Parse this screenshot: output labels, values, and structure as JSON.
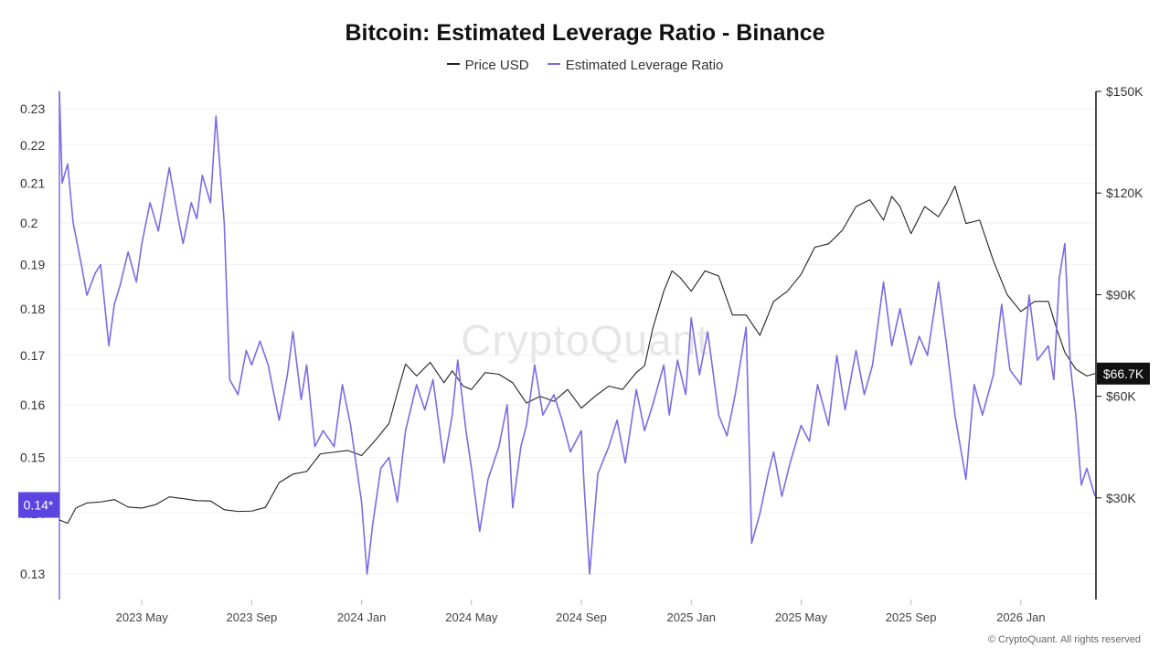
{
  "chart_data": {
    "type": "line",
    "title": "Bitcoin: Estimated Leverage Ratio - Binance",
    "legend": [
      {
        "name": "Price USD",
        "color": "#222222"
      },
      {
        "name": "Estimated Leverage Ratio",
        "color": "#7b6be6"
      }
    ],
    "legend_position": "top-center",
    "x_ticks": [
      "2023 May",
      "2023 Sep",
      "2024 Jan",
      "2024 May",
      "2024 Sep",
      "2025 Jan",
      "2025 May",
      "2025 Sep",
      "2026 Jan"
    ],
    "x_tick_months": [
      4,
      8,
      12,
      16,
      20,
      24,
      28,
      32,
      36
    ],
    "x_range_months": [
      1.0,
      38.7
    ],
    "left_axis": {
      "label": "Estimated Leverage Ratio",
      "ticks": [
        "0.23",
        "0.22",
        "0.21",
        "0.2",
        "0.19",
        "0.18",
        "0.17",
        "0.16",
        "0.15",
        "0.14",
        "0.13"
      ],
      "tick_values": [
        0.23,
        0.22,
        0.21,
        0.2,
        0.19,
        0.18,
        0.17,
        0.16,
        0.15,
        0.14,
        0.13
      ],
      "range": [
        0.126,
        0.235
      ],
      "scale": "log"
    },
    "right_axis": {
      "label": "Price USD",
      "ticks": [
        "$150K",
        "$120K",
        "$90K",
        "$60K",
        "$30K"
      ],
      "tick_values": [
        150000,
        120000,
        90000,
        60000,
        30000
      ],
      "range": [
        0,
        150000
      ]
    },
    "current_price_label": "$66.7K",
    "current_ratio_label": "0.14*",
    "series": [
      {
        "name": "Price USD",
        "axis": "right",
        "x_months": [
          1.0,
          1.3,
          1.6,
          2.0,
          2.5,
          3.0,
          3.5,
          4.0,
          4.5,
          5.0,
          5.5,
          6.0,
          6.5,
          7.0,
          7.5,
          8.0,
          8.5,
          9.0,
          9.5,
          10.0,
          10.5,
          11.0,
          11.5,
          12.0,
          12.5,
          13.0,
          13.3,
          13.6,
          14.0,
          14.5,
          15.0,
          15.3,
          15.7,
          16.0,
          16.5,
          17.0,
          17.5,
          18.0,
          18.5,
          19.0,
          19.5,
          20.0,
          20.5,
          21.0,
          21.5,
          22.0,
          22.3,
          22.6,
          23.0,
          23.3,
          23.6,
          24.0,
          24.5,
          25.0,
          25.5,
          26.0,
          26.5,
          27.0,
          27.5,
          28.0,
          28.5,
          29.0,
          29.5,
          30.0,
          30.5,
          31.0,
          31.3,
          31.6,
          32.0,
          32.5,
          33.0,
          33.3,
          33.6,
          34.0,
          34.5,
          35.0,
          35.5,
          36.0,
          36.5,
          37.0,
          37.3,
          37.6,
          38.0,
          38.4,
          38.7
        ],
        "values": [
          23500,
          22500,
          27000,
          28500,
          28800,
          29500,
          27300,
          27000,
          28000,
          30300,
          29800,
          29200,
          29100,
          26500,
          26000,
          26100,
          27200,
          34500,
          37000,
          37800,
          43000,
          43500,
          44000,
          42500,
          47000,
          52000,
          61000,
          69500,
          66000,
          70000,
          64000,
          67500,
          63000,
          62000,
          67000,
          66500,
          64000,
          58000,
          60000,
          58500,
          62000,
          56500,
          60000,
          63000,
          62000,
          67000,
          69000,
          80000,
          91000,
          97000,
          95000,
          91000,
          97000,
          95500,
          84000,
          84000,
          78000,
          88000,
          91000,
          96000,
          104000,
          105000,
          109000,
          116000,
          118000,
          112000,
          119000,
          116000,
          108000,
          116000,
          113000,
          117000,
          122000,
          111000,
          112000,
          100000,
          90000,
          85000,
          88000,
          88000,
          80000,
          73000,
          68000,
          66000,
          66700
        ]
      },
      {
        "name": "Estimated Leverage Ratio",
        "axis": "left",
        "x_months": [
          1.0,
          1.1,
          1.3,
          1.5,
          1.8,
          2.0,
          2.3,
          2.5,
          2.8,
          3.0,
          3.2,
          3.5,
          3.8,
          4.0,
          4.3,
          4.6,
          5.0,
          5.3,
          5.5,
          5.8,
          6.0,
          6.2,
          6.5,
          6.7,
          7.0,
          7.2,
          7.5,
          7.8,
          8.0,
          8.3,
          8.6,
          9.0,
          9.3,
          9.5,
          9.8,
          10.0,
          10.3,
          10.6,
          11.0,
          11.3,
          11.6,
          12.0,
          12.2,
          12.4,
          12.7,
          13.0,
          13.3,
          13.6,
          14.0,
          14.3,
          14.6,
          15.0,
          15.3,
          15.5,
          15.8,
          16.0,
          16.3,
          16.6,
          17.0,
          17.3,
          17.5,
          17.8,
          18.0,
          18.3,
          18.6,
          19.0,
          19.3,
          19.6,
          20.0,
          20.1,
          20.3,
          20.6,
          21.0,
          21.3,
          21.6,
          22.0,
          22.3,
          22.6,
          23.0,
          23.2,
          23.5,
          23.8,
          24.0,
          24.3,
          24.6,
          25.0,
          25.3,
          25.6,
          26.0,
          26.2,
          26.5,
          26.8,
          27.0,
          27.3,
          27.6,
          28.0,
          28.3,
          28.6,
          29.0,
          29.3,
          29.6,
          30.0,
          30.3,
          30.6,
          31.0,
          31.3,
          31.6,
          32.0,
          32.3,
          32.6,
          33.0,
          33.3,
          33.6,
          34.0,
          34.3,
          34.6,
          35.0,
          35.3,
          35.6,
          36.0,
          36.3,
          36.6,
          37.0,
          37.2,
          37.4,
          37.6,
          37.8,
          38.0,
          38.2,
          38.4,
          38.7
        ],
        "values": [
          0.235,
          0.21,
          0.215,
          0.2,
          0.19,
          0.183,
          0.188,
          0.19,
          0.172,
          0.181,
          0.185,
          0.193,
          0.186,
          0.195,
          0.205,
          0.198,
          0.214,
          0.202,
          0.195,
          0.205,
          0.201,
          0.212,
          0.205,
          0.228,
          0.2,
          0.165,
          0.162,
          0.171,
          0.168,
          0.173,
          0.168,
          0.157,
          0.166,
          0.175,
          0.161,
          0.168,
          0.152,
          0.155,
          0.152,
          0.164,
          0.156,
          0.142,
          0.13,
          0.138,
          0.148,
          0.15,
          0.142,
          0.155,
          0.164,
          0.159,
          0.165,
          0.149,
          0.158,
          0.169,
          0.155,
          0.148,
          0.137,
          0.146,
          0.152,
          0.16,
          0.141,
          0.152,
          0.156,
          0.168,
          0.158,
          0.162,
          0.157,
          0.151,
          0.155,
          0.145,
          0.13,
          0.147,
          0.152,
          0.157,
          0.149,
          0.163,
          0.155,
          0.16,
          0.168,
          0.158,
          0.169,
          0.162,
          0.178,
          0.166,
          0.175,
          0.158,
          0.154,
          0.162,
          0.176,
          0.135,
          0.14,
          0.147,
          0.151,
          0.143,
          0.149,
          0.156,
          0.153,
          0.164,
          0.156,
          0.17,
          0.159,
          0.171,
          0.162,
          0.168,
          0.186,
          0.172,
          0.18,
          0.168,
          0.174,
          0.17,
          0.186,
          0.172,
          0.158,
          0.146,
          0.164,
          0.158,
          0.166,
          0.181,
          0.167,
          0.164,
          0.183,
          0.169,
          0.172,
          0.165,
          0.187,
          0.195,
          0.168,
          0.158,
          0.145,
          0.148,
          0.143
        ]
      }
    ]
  },
  "watermark": "CryptoQuant",
  "copyright": "© CryptoQuant. All rights reserved"
}
